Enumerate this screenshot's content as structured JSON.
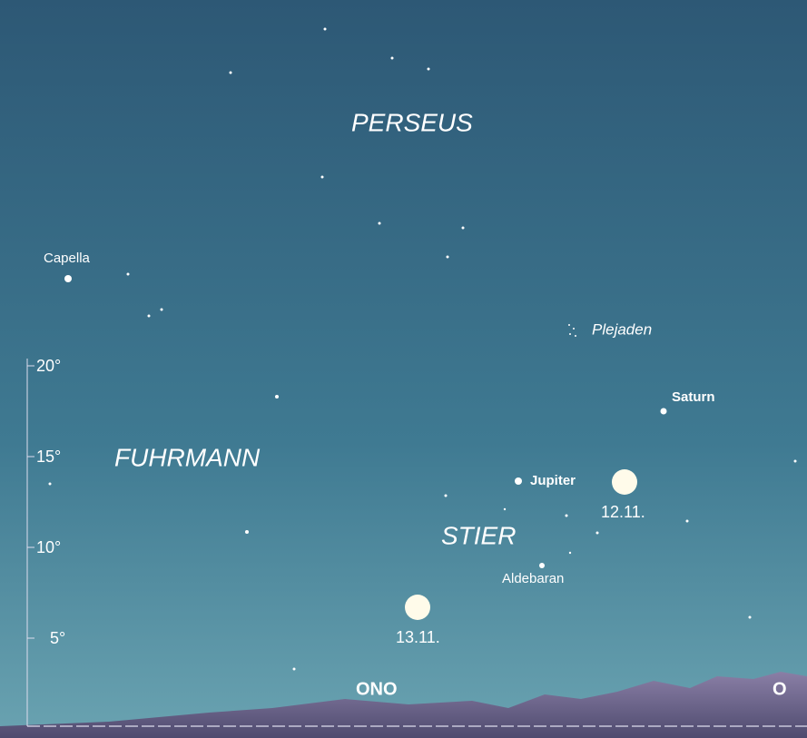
{
  "labels": {
    "perseus": "PERSEUS",
    "fuhrmann": "FUHRMANN",
    "stier": "STIER",
    "capella": "Capella",
    "plejaden": "Plejaden",
    "saturn": "Saturn",
    "jupiter": "Jupiter",
    "aldebaran": "Aldebaran",
    "moon_1": "12.11.",
    "moon_2": "13.11."
  },
  "scale": [
    "20°",
    "15°",
    "10°",
    "5°"
  ],
  "directions": [
    "ONO",
    "O"
  ]
}
